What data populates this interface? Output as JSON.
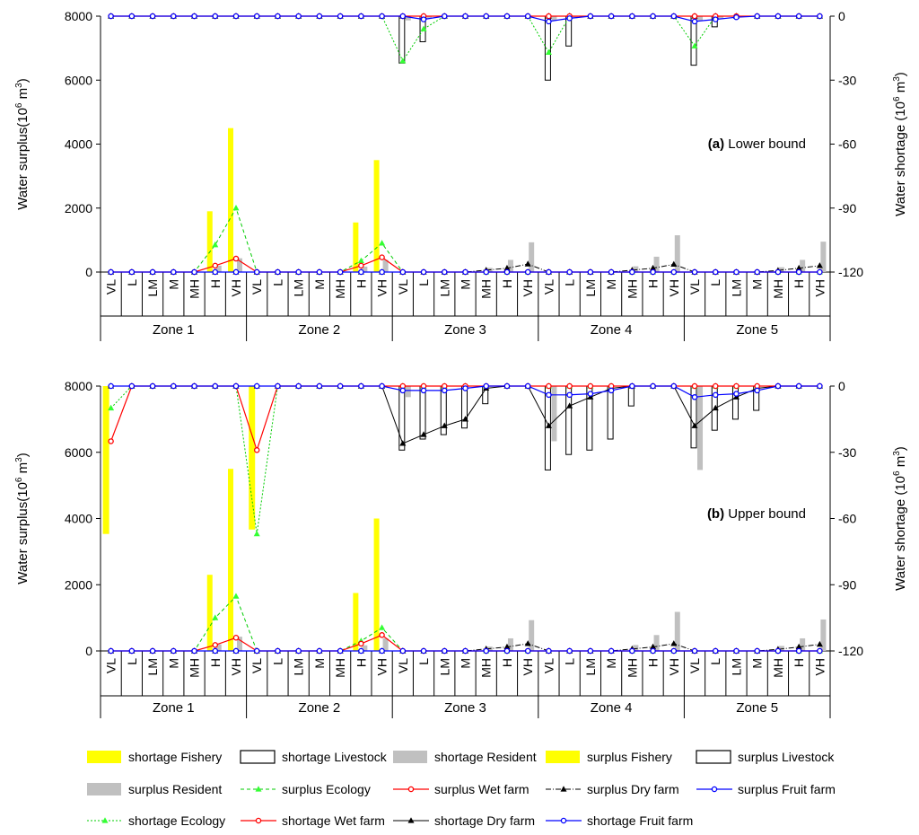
{
  "chart_data": {
    "type": "bar",
    "categories": [
      "VL",
      "L",
      "LM",
      "M",
      "MH",
      "H",
      "VH"
    ],
    "zones": [
      "Zone 1",
      "Zone 2",
      "Zone 3",
      "Zone 4",
      "Zone 5"
    ],
    "y_left_label": "Water surplus(10",
    "y_right_label": "Water shortage (10",
    "y_unit_sup": "6",
    "y_unit_tail": " m",
    "y_unit_sup2": "3",
    "y_unit_close": ")",
    "y_left_ticks": [
      "0",
      "2000",
      "4000",
      "6000",
      "8000"
    ],
    "y_right_ticks": [
      "-120",
      "-90",
      "-60",
      "-30",
      "0"
    ],
    "y_left_range": [
      0,
      8000
    ],
    "y_right_range": [
      -120,
      0
    ],
    "colors": {
      "fishery": "#ffff00",
      "resident": "#c0c0c0",
      "livestock_stroke": "#000000",
      "ecology": "#00cc00",
      "ecology_marker": "#33ff33",
      "wet": "#ff0000",
      "dry": "#000000",
      "fruit": "#0000ff"
    },
    "panels": [
      {
        "title_bold": "(a)",
        "title_text": " Lower bound",
        "surplus_fishery": [
          0,
          0,
          0,
          0,
          0,
          1900,
          4500,
          0,
          0,
          0,
          0,
          0,
          1550,
          3500,
          0,
          0,
          0,
          0,
          0,
          0,
          0,
          0,
          0,
          0,
          0,
          0,
          0,
          0,
          0,
          0,
          0,
          0,
          0,
          0,
          0
        ],
        "surplus_resident": [
          0,
          0,
          0,
          0,
          0,
          200,
          430,
          0,
          0,
          0,
          0,
          0,
          170,
          380,
          0,
          0,
          0,
          0,
          130,
          380,
          930,
          0,
          0,
          0,
          0,
          180,
          480,
          1150,
          0,
          0,
          0,
          0,
          150,
          380,
          950
        ],
        "surplus_ecology": [
          0,
          0,
          0,
          0,
          0,
          850,
          2000,
          0,
          0,
          0,
          0,
          0,
          350,
          900,
          0,
          0,
          0,
          0,
          0,
          0,
          0,
          0,
          0,
          0,
          0,
          0,
          0,
          0,
          0,
          0,
          0,
          0,
          0,
          0,
          0
        ],
        "surplus_wet": [
          0,
          0,
          0,
          0,
          0,
          200,
          420,
          0,
          0,
          0,
          0,
          0,
          200,
          460,
          0,
          0,
          0,
          0,
          0,
          0,
          0,
          0,
          0,
          0,
          0,
          0,
          0,
          0,
          0,
          0,
          0,
          0,
          0,
          0,
          0
        ],
        "surplus_dry": [
          0,
          0,
          0,
          0,
          0,
          0,
          0,
          0,
          0,
          0,
          0,
          0,
          0,
          0,
          0,
          0,
          0,
          0,
          60,
          120,
          250,
          0,
          0,
          0,
          0,
          60,
          120,
          240,
          0,
          0,
          0,
          0,
          50,
          120,
          200
        ],
        "surplus_fruit": [
          0,
          0,
          0,
          0,
          0,
          0,
          0,
          0,
          0,
          0,
          0,
          0,
          0,
          0,
          0,
          0,
          0,
          0,
          0,
          0,
          0,
          0,
          0,
          0,
          0,
          0,
          0,
          0,
          0,
          0,
          0,
          0,
          0,
          0,
          0
        ],
        "shortage_fishery": [
          0,
          0,
          0,
          0,
          0,
          0,
          0,
          0,
          0,
          0,
          0,
          0,
          0,
          0,
          0,
          0,
          0,
          0,
          0,
          0,
          0,
          0,
          0,
          0,
          0,
          0,
          0,
          0,
          0,
          0,
          0,
          0,
          0,
          0,
          0
        ],
        "shortage_resident": [
          0,
          0,
          0,
          0,
          0,
          0,
          0,
          0,
          0,
          0,
          0,
          0,
          0,
          0,
          -2,
          -1,
          0,
          0,
          0,
          0,
          0,
          -2,
          -1,
          0,
          0,
          0,
          0,
          0,
          -2,
          -1,
          0,
          0,
          0,
          0,
          0
        ],
        "shortage_livestock": [
          0,
          0,
          0,
          0,
          0,
          0,
          0,
          0,
          0,
          0,
          0,
          0,
          0,
          0,
          -22,
          -12,
          0,
          0,
          0,
          0,
          0,
          -30,
          -14,
          0,
          0,
          0,
          0,
          0,
          -23,
          -5,
          0,
          0,
          0,
          0,
          0
        ],
        "shortage_ecology": [
          0,
          0,
          0,
          0,
          0,
          0,
          0,
          0,
          0,
          0,
          0,
          0,
          0,
          0,
          -21,
          -6,
          0,
          0,
          0,
          0,
          0,
          -17,
          0,
          0,
          0,
          0,
          0,
          0,
          -14,
          0,
          0,
          0,
          0,
          0,
          0
        ],
        "shortage_wet": [
          0,
          0,
          0,
          0,
          0,
          0,
          0,
          0,
          0,
          0,
          0,
          0,
          0,
          0,
          0,
          0,
          0,
          0,
          0,
          0,
          0,
          0,
          0,
          0,
          0,
          0,
          0,
          0,
          0,
          0,
          0,
          0,
          0,
          0,
          0
        ],
        "shortage_dry": [
          0,
          0,
          0,
          0,
          0,
          0,
          0,
          0,
          0,
          0,
          0,
          0,
          0,
          0,
          0,
          0,
          0,
          0,
          0,
          0,
          0,
          0,
          0,
          0,
          0,
          0,
          0,
          0,
          0,
          0,
          0,
          0,
          0,
          0,
          0
        ],
        "shortage_fruit": [
          0,
          0,
          0,
          0,
          0,
          0,
          0,
          0,
          0,
          0,
          0,
          0,
          0,
          0,
          0,
          -1.5,
          0,
          0,
          0,
          0,
          0,
          -2.5,
          -1,
          0,
          0,
          0,
          0,
          0,
          -2.5,
          -1.5,
          -0.5,
          0,
          0,
          0,
          0
        ]
      },
      {
        "title_bold": "(b)",
        "title_text": " Upper bound",
        "surplus_fishery": [
          0,
          0,
          0,
          0,
          0,
          2300,
          5500,
          0,
          0,
          0,
          0,
          0,
          1750,
          4000,
          0,
          0,
          0,
          0,
          0,
          0,
          0,
          0,
          0,
          0,
          0,
          0,
          0,
          0,
          0,
          0,
          0,
          0,
          0,
          0,
          0
        ],
        "surplus_resident": [
          0,
          0,
          0,
          0,
          0,
          200,
          430,
          0,
          0,
          0,
          0,
          0,
          170,
          380,
          0,
          0,
          0,
          0,
          130,
          380,
          930,
          0,
          0,
          0,
          0,
          180,
          480,
          1180,
          0,
          0,
          0,
          0,
          150,
          380,
          950
        ],
        "surplus_ecology": [
          0,
          0,
          0,
          0,
          0,
          1000,
          1650,
          0,
          0,
          0,
          0,
          0,
          300,
          700,
          0,
          0,
          0,
          0,
          0,
          0,
          0,
          0,
          0,
          0,
          0,
          0,
          0,
          0,
          0,
          0,
          0,
          0,
          0,
          0,
          0
        ],
        "surplus_wet": [
          0,
          0,
          0,
          0,
          0,
          180,
          400,
          0,
          0,
          0,
          0,
          0,
          220,
          480,
          0,
          0,
          0,
          0,
          0,
          0,
          0,
          0,
          0,
          0,
          0,
          0,
          0,
          0,
          0,
          0,
          0,
          0,
          0,
          0,
          0
        ],
        "surplus_dry": [
          0,
          0,
          0,
          0,
          0,
          0,
          0,
          0,
          0,
          0,
          0,
          0,
          0,
          0,
          0,
          0,
          0,
          0,
          60,
          120,
          220,
          0,
          0,
          0,
          0,
          60,
          120,
          220,
          0,
          0,
          0,
          0,
          50,
          120,
          200
        ],
        "surplus_fruit": [
          0,
          0,
          0,
          0,
          0,
          0,
          0,
          0,
          0,
          0,
          0,
          0,
          0,
          0,
          0,
          0,
          0,
          0,
          0,
          0,
          0,
          0,
          0,
          0,
          0,
          0,
          0,
          0,
          0,
          0,
          0,
          0,
          0,
          0,
          0
        ],
        "shortage_fishery": [
          -67,
          0,
          0,
          0,
          0,
          0,
          0,
          -65,
          0,
          0,
          0,
          0,
          0,
          0,
          0,
          0,
          0,
          0,
          0,
          0,
          0,
          0,
          0,
          0,
          0,
          0,
          0,
          0,
          0,
          0,
          0,
          0,
          0,
          0,
          0
        ],
        "shortage_resident": [
          0,
          0,
          0,
          0,
          0,
          0,
          0,
          0,
          0,
          0,
          0,
          0,
          0,
          0,
          -5,
          0,
          0,
          0,
          0,
          0,
          0,
          -25,
          0,
          0,
          0,
          0,
          0,
          0,
          -38,
          0,
          0,
          0,
          0,
          0,
          0
        ],
        "shortage_livestock": [
          0,
          0,
          0,
          0,
          0,
          0,
          0,
          0,
          0,
          0,
          0,
          0,
          0,
          0,
          -29,
          -24,
          -22,
          -19,
          -8,
          0,
          0,
          -38,
          -31,
          -29,
          -24,
          -9,
          0,
          0,
          -28,
          -20,
          -15,
          -11,
          0,
          0,
          0
        ],
        "shortage_ecology": [
          -10,
          0,
          0,
          0,
          0,
          0,
          0,
          -67,
          0,
          0,
          0,
          0,
          0,
          0,
          0,
          0,
          0,
          0,
          0,
          0,
          0,
          0,
          0,
          0,
          0,
          0,
          0,
          0,
          0,
          0,
          0,
          0,
          0,
          0,
          0
        ],
        "shortage_wet": [
          -25,
          0,
          0,
          0,
          0,
          0,
          0,
          -29,
          0,
          0,
          0,
          0,
          0,
          0,
          0,
          0,
          0,
          0,
          0,
          0,
          0,
          0,
          0,
          0,
          0,
          0,
          0,
          0,
          0,
          0,
          0,
          0,
          0,
          0,
          0
        ],
        "shortage_dry": [
          0,
          0,
          0,
          0,
          0,
          0,
          0,
          0,
          0,
          0,
          0,
          0,
          0,
          0,
          -26,
          -22,
          -18,
          -15,
          -1,
          0,
          0,
          -18,
          -9,
          -5,
          -1,
          0,
          0,
          0,
          -18,
          -10,
          -5,
          -1,
          0,
          0,
          0
        ],
        "shortage_fruit": [
          0,
          0,
          0,
          0,
          0,
          0,
          0,
          0,
          0,
          0,
          0,
          0,
          0,
          0,
          -2,
          -2,
          -2,
          -1,
          0,
          0,
          0,
          -4,
          -4,
          -3.5,
          -2,
          0,
          0,
          0,
          -5,
          -4,
          -3.5,
          -2,
          0,
          0,
          0
        ]
      }
    ],
    "legend": [
      {
        "key": "sf",
        "label": "shortage Fishery"
      },
      {
        "key": "sl",
        "label": "shortage Livestock"
      },
      {
        "key": "sr",
        "label": "shortage Resident"
      },
      {
        "key": "uf",
        "label": "surplus Fishery"
      },
      {
        "key": "ul",
        "label": "surplus Livestock"
      },
      {
        "key": "ur",
        "label": "surplus Resident"
      },
      {
        "key": "ue",
        "label": "surplus Ecology"
      },
      {
        "key": "uw",
        "label": "surplus Wet farm"
      },
      {
        "key": "ud",
        "label": "surplus Dry farm"
      },
      {
        "key": "uu",
        "label": "surplus Fruit farm"
      },
      {
        "key": "se",
        "label": "shortage Ecology"
      },
      {
        "key": "sw",
        "label": "shortage Wet farm"
      },
      {
        "key": "sd",
        "label": "shortage Dry farm"
      },
      {
        "key": "su",
        "label": "shortage Fruit farm"
      }
    ]
  }
}
